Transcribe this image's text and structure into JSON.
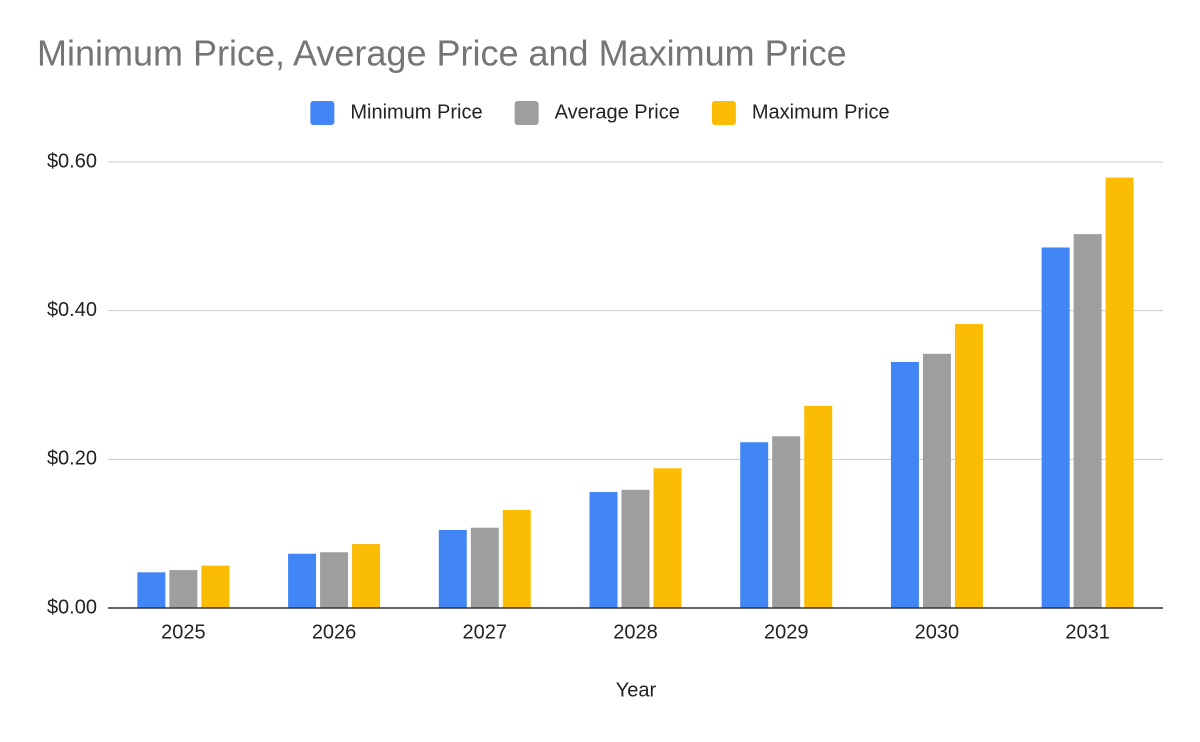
{
  "chart_data": {
    "type": "bar",
    "title": "Minimum Price, Average Price and Maximum Price",
    "x_label": "Year",
    "categories": [
      "2025",
      "2026",
      "2027",
      "2028",
      "2029",
      "2030",
      "2031"
    ],
    "series": [
      {
        "name": "Minimum Price",
        "color": "#4285f4",
        "values": [
          0.048,
          0.073,
          0.105,
          0.156,
          0.223,
          0.331,
          0.485
        ]
      },
      {
        "name": "Average Price",
        "color": "#9e9e9e",
        "values": [
          0.051,
          0.075,
          0.108,
          0.159,
          0.231,
          0.342,
          0.503
        ]
      },
      {
        "name": "Maximum Price",
        "color": "#fbbc04",
        "values": [
          0.057,
          0.086,
          0.132,
          0.188,
          0.272,
          0.382,
          0.579
        ]
      }
    ],
    "ylim": [
      0,
      0.6
    ],
    "yticks": [
      {
        "value": 0,
        "label": "$0.00"
      },
      {
        "value": 0.2,
        "label": "$0.20"
      },
      {
        "value": 0.4,
        "label": "$0.40"
      },
      {
        "value": 0.6,
        "label": "$0.60"
      }
    ],
    "grid": true,
    "legend": "top"
  }
}
